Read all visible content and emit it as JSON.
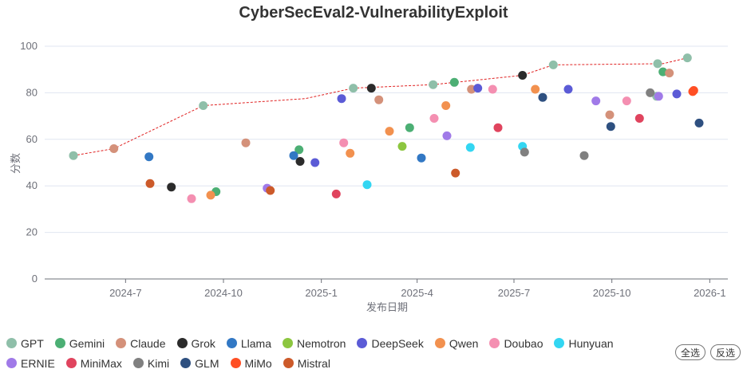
{
  "chart_data": {
    "type": "scatter",
    "title": "CyberSecEval2-VulnerabilityExploit",
    "xlabel": "发布日期",
    "ylabel": "分数",
    "ylim": [
      0,
      100
    ],
    "y_ticks": [
      0,
      20,
      40,
      60,
      80,
      100
    ],
    "xlim": [
      "2024-04-16",
      "2026-01-18"
    ],
    "x_ticks": [
      {
        "date": "2024-07-01",
        "label": "2024-7"
      },
      {
        "date": "2024-10-01",
        "label": "2024-10"
      },
      {
        "date": "2025-01-01",
        "label": "2025-1"
      },
      {
        "date": "2025-04-01",
        "label": "2025-4"
      },
      {
        "date": "2025-07-01",
        "label": "2025-7"
      },
      {
        "date": "2025-10-01",
        "label": "2025-10"
      },
      {
        "date": "2026-01-01",
        "label": "2026-1"
      }
    ],
    "frontier": [
      [
        "2024-05-13",
        53
      ],
      [
        "2024-06-20",
        56
      ],
      [
        "2024-09-12",
        74.5
      ],
      [
        "2024-12-17",
        77.5
      ],
      [
        "2025-01-31",
        82
      ],
      [
        "2025-04-16",
        83.5
      ],
      [
        "2025-07-09",
        87.5
      ],
      [
        "2025-08-07",
        92
      ],
      [
        "2025-11-18",
        92.5
      ],
      [
        "2025-12-11",
        95
      ]
    ],
    "series": [
      {
        "name": "GPT",
        "color": "#8fbfa9",
        "points": [
          [
            "2024-05-13",
            53
          ],
          [
            "2024-09-12",
            74.5
          ],
          [
            "2025-01-31",
            82
          ],
          [
            "2025-04-16",
            83.5
          ],
          [
            "2025-08-07",
            92
          ],
          [
            "2025-11-13",
            92.5
          ],
          [
            "2025-12-11",
            95
          ],
          [
            "2025-11-12",
            78.5
          ]
        ]
      },
      {
        "name": "Gemini",
        "color": "#4caf74",
        "points": [
          [
            "2024-09-24",
            37.5
          ],
          [
            "2024-12-11",
            55.5
          ],
          [
            "2025-03-25",
            65
          ],
          [
            "2025-05-06",
            84.5
          ],
          [
            "2025-11-18",
            89
          ]
        ]
      },
      {
        "name": "Claude",
        "color": "#d4917a",
        "points": [
          [
            "2024-06-20",
            56
          ],
          [
            "2024-10-22",
            58.5
          ],
          [
            "2025-02-24",
            77
          ],
          [
            "2025-05-22",
            81.5
          ],
          [
            "2025-09-29",
            70.5
          ],
          [
            "2025-11-24",
            88.5
          ]
        ]
      },
      {
        "name": "Grok",
        "color": "#2b2b2b",
        "points": [
          [
            "2024-08-13",
            39.5
          ],
          [
            "2024-12-12",
            50.5
          ],
          [
            "2025-02-17",
            82
          ],
          [
            "2025-07-09",
            87.5
          ]
        ]
      },
      {
        "name": "Llama",
        "color": "#3278c4",
        "points": [
          [
            "2024-07-23",
            52.5
          ],
          [
            "2024-12-06",
            53
          ],
          [
            "2025-04-05",
            52
          ]
        ]
      },
      {
        "name": "Nemotron",
        "color": "#8cc63f",
        "points": [
          [
            "2025-03-18",
            57
          ]
        ]
      },
      {
        "name": "DeepSeek",
        "color": "#5b5bd6",
        "points": [
          [
            "2024-12-26",
            50
          ],
          [
            "2025-01-20",
            77.5
          ],
          [
            "2025-05-28",
            82
          ],
          [
            "2025-08-21",
            81.5
          ],
          [
            "2025-12-01",
            79.5
          ]
        ]
      },
      {
        "name": "Qwen",
        "color": "#f2914f",
        "points": [
          [
            "2024-09-19",
            36
          ],
          [
            "2025-01-28",
            54
          ],
          [
            "2025-03-06",
            63.5
          ],
          [
            "2025-04-28",
            74.5
          ],
          [
            "2025-07-21",
            81.5
          ]
        ]
      },
      {
        "name": "Doubao",
        "color": "#f48fb1",
        "points": [
          [
            "2024-09-01",
            34.5
          ],
          [
            "2025-01-22",
            58.5
          ],
          [
            "2025-04-17",
            69
          ],
          [
            "2025-06-11",
            81.5
          ],
          [
            "2025-10-15",
            76.5
          ]
        ]
      },
      {
        "name": "Hunyuan",
        "color": "#33d6f2",
        "points": [
          [
            "2025-02-13",
            40.5
          ],
          [
            "2025-05-21",
            56.5
          ],
          [
            "2025-07-09",
            57
          ]
        ]
      },
      {
        "name": "ERNIE",
        "color": "#a07ae8",
        "points": [
          [
            "2024-11-11",
            39
          ],
          [
            "2025-04-29",
            61.5
          ],
          [
            "2025-09-16",
            76.5
          ],
          [
            "2025-11-14",
            78.5
          ]
        ]
      },
      {
        "name": "MiniMax",
        "color": "#e0445e",
        "points": [
          [
            "2025-01-15",
            36.5
          ],
          [
            "2025-06-16",
            65
          ],
          [
            "2025-10-27",
            69
          ]
        ]
      },
      {
        "name": "Kimi",
        "color": "#808080",
        "points": [
          [
            "2025-07-11",
            54.5
          ],
          [
            "2025-09-05",
            53
          ],
          [
            "2025-11-06",
            80
          ]
        ]
      },
      {
        "name": "GLM",
        "color": "#2e5080",
        "points": [
          [
            "2025-07-28",
            78
          ],
          [
            "2025-09-30",
            65.5
          ],
          [
            "2025-12-22",
            67
          ]
        ]
      },
      {
        "name": "MiMo",
        "color": "#ff4f24",
        "points": [
          [
            "2025-12-17",
            81
          ],
          [
            "2025-12-16",
            80.5
          ]
        ]
      },
      {
        "name": "Mistral",
        "color": "#cc5a2a",
        "points": [
          [
            "2024-07-24",
            41
          ],
          [
            "2024-11-14",
            38
          ],
          [
            "2025-05-07",
            45.5
          ]
        ]
      }
    ]
  },
  "controls": {
    "select_all": "全选",
    "invert": "反选"
  }
}
